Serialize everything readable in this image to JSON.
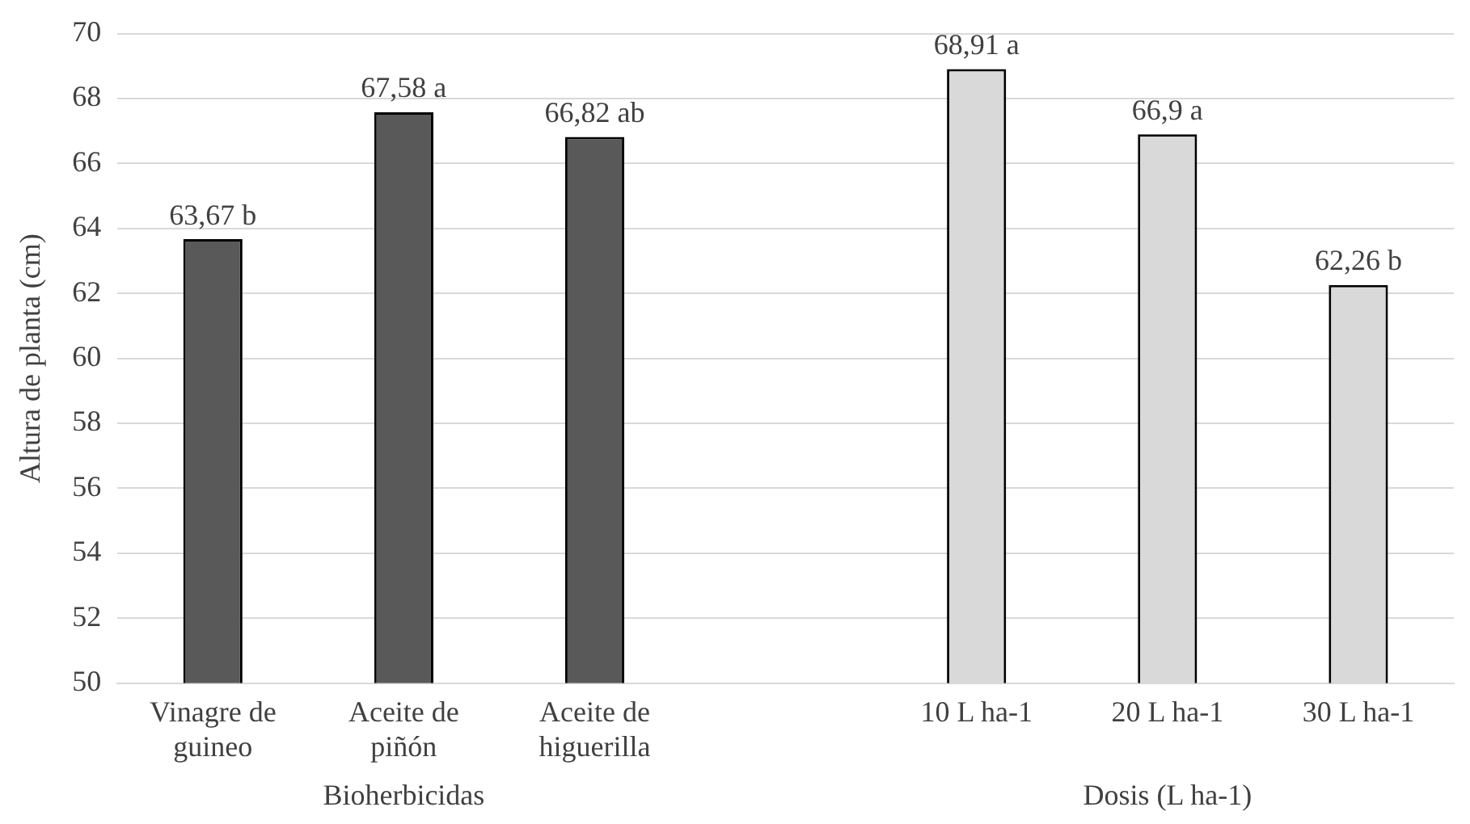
{
  "chart_data": {
    "type": "bar",
    "ylabel": "Altura de planta (cm)",
    "categories": [
      "Vinagre de guineo",
      "Aceite de piñón",
      "Aceite de higuerilla",
      null,
      "10 L ha-1",
      "20 L ha-1",
      "30 L ha-1"
    ],
    "values": [
      63.67,
      67.58,
      66.82,
      null,
      68.91,
      66.9,
      62.26
    ],
    "colors": [
      "#595959",
      "#595959",
      "#595959",
      null,
      "#d9d9d9",
      "#d9d9d9",
      "#d9d9d9"
    ],
    "value_labels": [
      "63,67 b",
      "67,58 a",
      "66,82 ab",
      null,
      "68,91 a",
      "66,9 a",
      "62,26 b"
    ],
    "ylim": [
      50,
      70
    ],
    "yticks": [
      50,
      52,
      54,
      56,
      58,
      60,
      62,
      64,
      66,
      68,
      70
    ],
    "grid": "y",
    "legend": false,
    "annotations": [
      "Bioherbicidas",
      "Dosis (L ha-1)"
    ]
  }
}
